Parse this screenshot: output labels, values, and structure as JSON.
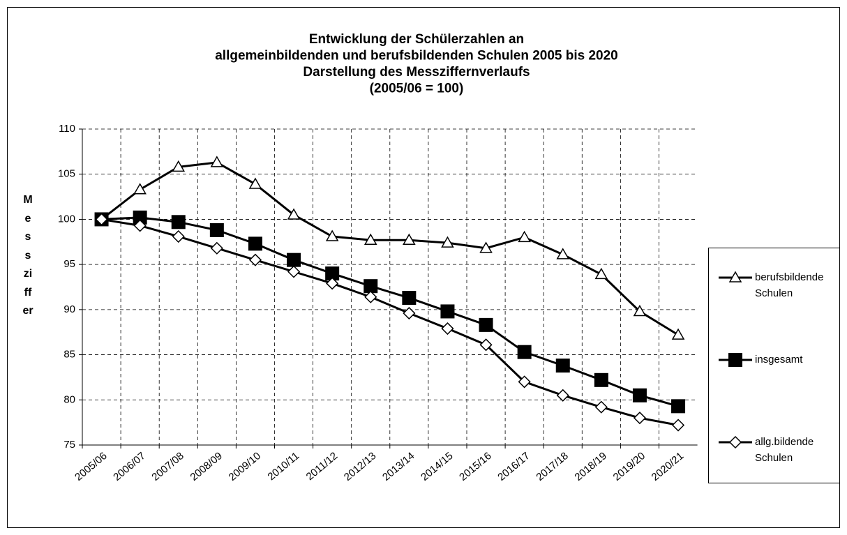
{
  "chart_data": {
    "type": "line",
    "title": [
      "Entwicklung der Schülerzahlen an",
      "allgemeinbildenden und berufsbildenden Schulen 2005 bis 2020",
      "Darstellung des Messziffernverlaufs",
      "(2005/06 = 100)"
    ],
    "y_label": "Messziffer",
    "categories": [
      "2005/06",
      "2006/07",
      "2007/08",
      "2008/09",
      "2009/10",
      "2010/11",
      "2011/12",
      "2012/13",
      "2013/14",
      "2014/15",
      "2015/16",
      "2016/17",
      "2017/18",
      "2018/19",
      "2019/20",
      "2020/21"
    ],
    "series": [
      {
        "name": "berufsbildende Schulen",
        "color": "#000000",
        "marker": "triangle",
        "values": [
          100,
          103.3,
          105.8,
          106.3,
          103.9,
          100.5,
          98.1,
          97.7,
          97.7,
          97.4,
          96.8,
          98.0,
          96.1,
          93.9,
          89.8,
          87.2
        ]
      },
      {
        "name": "insgesamt",
        "color": "#000000",
        "marker": "square",
        "values": [
          100,
          100.2,
          99.7,
          98.8,
          97.3,
          95.5,
          94.0,
          92.6,
          91.3,
          89.8,
          88.3,
          85.3,
          83.8,
          82.2,
          80.5,
          79.3
        ]
      },
      {
        "name": "allg.bildende Schulen",
        "color": "#000000",
        "marker": "diamond",
        "values": [
          100,
          99.3,
          98.1,
          96.8,
          95.5,
          94.2,
          92.9,
          91.4,
          89.6,
          87.9,
          86.1,
          82.0,
          80.5,
          79.2,
          78.0,
          77.2
        ]
      }
    ],
    "ylim": [
      75,
      110
    ],
    "yticks": [
      75,
      80,
      85,
      90,
      95,
      100,
      105,
      110
    ],
    "grid": true,
    "legend": "right"
  }
}
